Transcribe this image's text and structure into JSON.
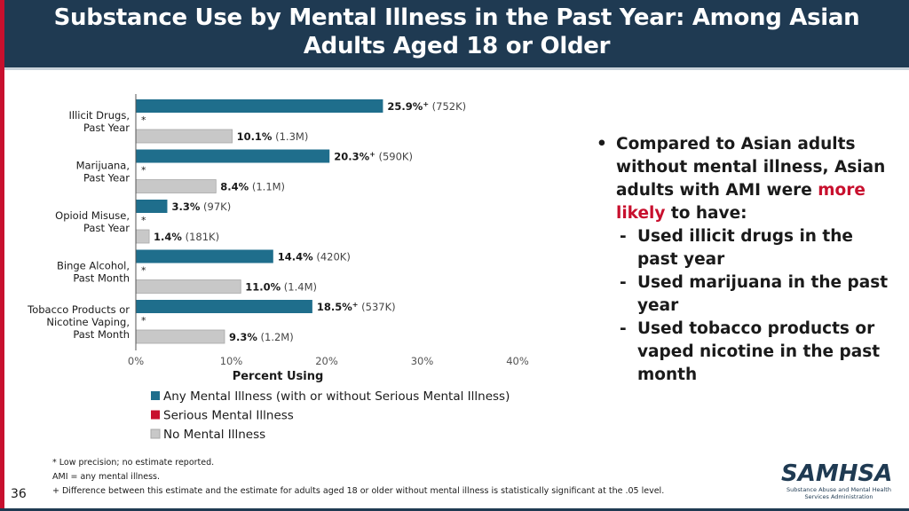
{
  "header": {
    "title_line1": "Substance Use by Mental Illness in the Past Year: Among Asian",
    "title_line2": "Adults Aged 18 or Older"
  },
  "colors": {
    "ami": "#1f6e8c",
    "smi": "#c8102e",
    "no_mi": "#c8c8c8",
    "header_bg": "#1f3a52",
    "highlight": "#c8102e"
  },
  "chart_data": {
    "type": "bar",
    "orientation": "horizontal",
    "categories": [
      {
        "line1": "Illicit Drugs,",
        "line2": "Past Year"
      },
      {
        "line1": "Marijuana,",
        "line2": "Past Year"
      },
      {
        "line1": "Opioid Misuse,",
        "line2": "Past Year"
      },
      {
        "line1": "Binge Alcohol,",
        "line2": "Past Month"
      },
      {
        "line1": "Tobacco Products or",
        "line2": "Nicotine Vaping,",
        "line3": "Past Month"
      }
    ],
    "series": [
      {
        "name": "Any Mental Illness (with or without Serious Mental Illness)",
        "values": [
          25.9,
          20.3,
          3.3,
          14.4,
          18.5
        ],
        "value_labels": [
          "25.9%",
          "20.3%",
          "3.3%",
          "14.4%",
          "18.5%"
        ],
        "sig_marks": [
          "+",
          "+",
          "",
          "",
          "+"
        ],
        "counts": [
          "(752K)",
          "(590K)",
          "(97K)",
          "(420K)",
          "(537K)"
        ]
      },
      {
        "name": "Serious Mental Illness",
        "values": [
          null,
          null,
          null,
          null,
          null
        ],
        "markers": [
          "*",
          "*",
          "*",
          "*",
          "*"
        ]
      },
      {
        "name": "No Mental Illness",
        "values": [
          10.1,
          8.4,
          1.4,
          11.0,
          9.3
        ],
        "value_labels": [
          "10.1%",
          "8.4%",
          "1.4%",
          "11.0%",
          "9.3%"
        ],
        "sig_marks": [
          "",
          "",
          "",
          "",
          ""
        ],
        "counts": [
          "(1.3M)",
          "(1.1M)",
          "(181K)",
          "(1.4M)",
          "(1.2M)"
        ]
      }
    ],
    "xlim": [
      0,
      40
    ],
    "xticks": [
      "0%",
      "10%",
      "20%",
      "30%",
      "40%"
    ],
    "xlabel": "Percent Using",
    "legend_position": "bottom"
  },
  "bullets": {
    "main_text_before": "Compared to Asian adults without mental illness, Asian adults with AMI were ",
    "main_highlight": "more likely",
    "main_text_after": " to have:",
    "dash": "-",
    "bullet_symbol": "•",
    "items": [
      "Used illicit drugs in the past year",
      "Used marijuana in the past year",
      "Used tobacco products or vaped nicotine in the past month"
    ]
  },
  "footnotes": [
    "* Low precision; no estimate reported.",
    "AMI = any mental illness.",
    "+ Difference between this estimate and the estimate for adults aged 18 or older without mental illness is statistically significant at the .05 level."
  ],
  "page_number": "36",
  "logo": {
    "mark": "SAMHSA",
    "line1": "Substance Abuse and Mental Health",
    "line2": "Services Administration"
  }
}
